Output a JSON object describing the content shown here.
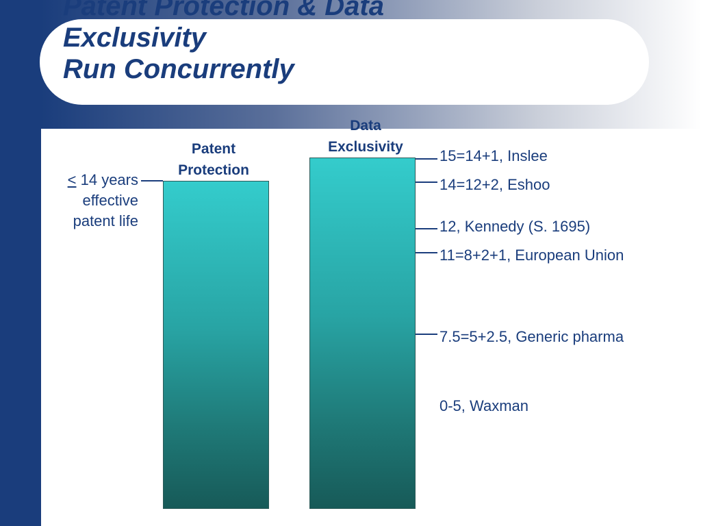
{
  "title": {
    "line1": "Patent Protection & Data",
    "line2": "Exclusivity",
    "line3": "Run Concurrently"
  },
  "patent_bar": {
    "label_line1": "Patent",
    "label_line2": "Protection",
    "note_symbol": "<",
    "note_line1": "14 years",
    "note_line2": "effective",
    "note_line3": "patent life"
  },
  "data_bar": {
    "label_line1": "Data",
    "label_line2": "Exclusivity"
  },
  "annotations": [
    {
      "text": "15=14+1, Inslee"
    },
    {
      "text": "14=12+2, Eshoo"
    },
    {
      "text": "12, Kennedy (S. 1695)"
    },
    {
      "text": "11=8+2+1, European Union"
    },
    {
      "text": "7.5=5+2.5, Generic pharma"
    },
    {
      "text": "0-5, Waxman"
    }
  ],
  "colors": {
    "navy": "#1a3d7c",
    "teal_top": "#34cccc",
    "teal_bottom": "#175a58"
  }
}
